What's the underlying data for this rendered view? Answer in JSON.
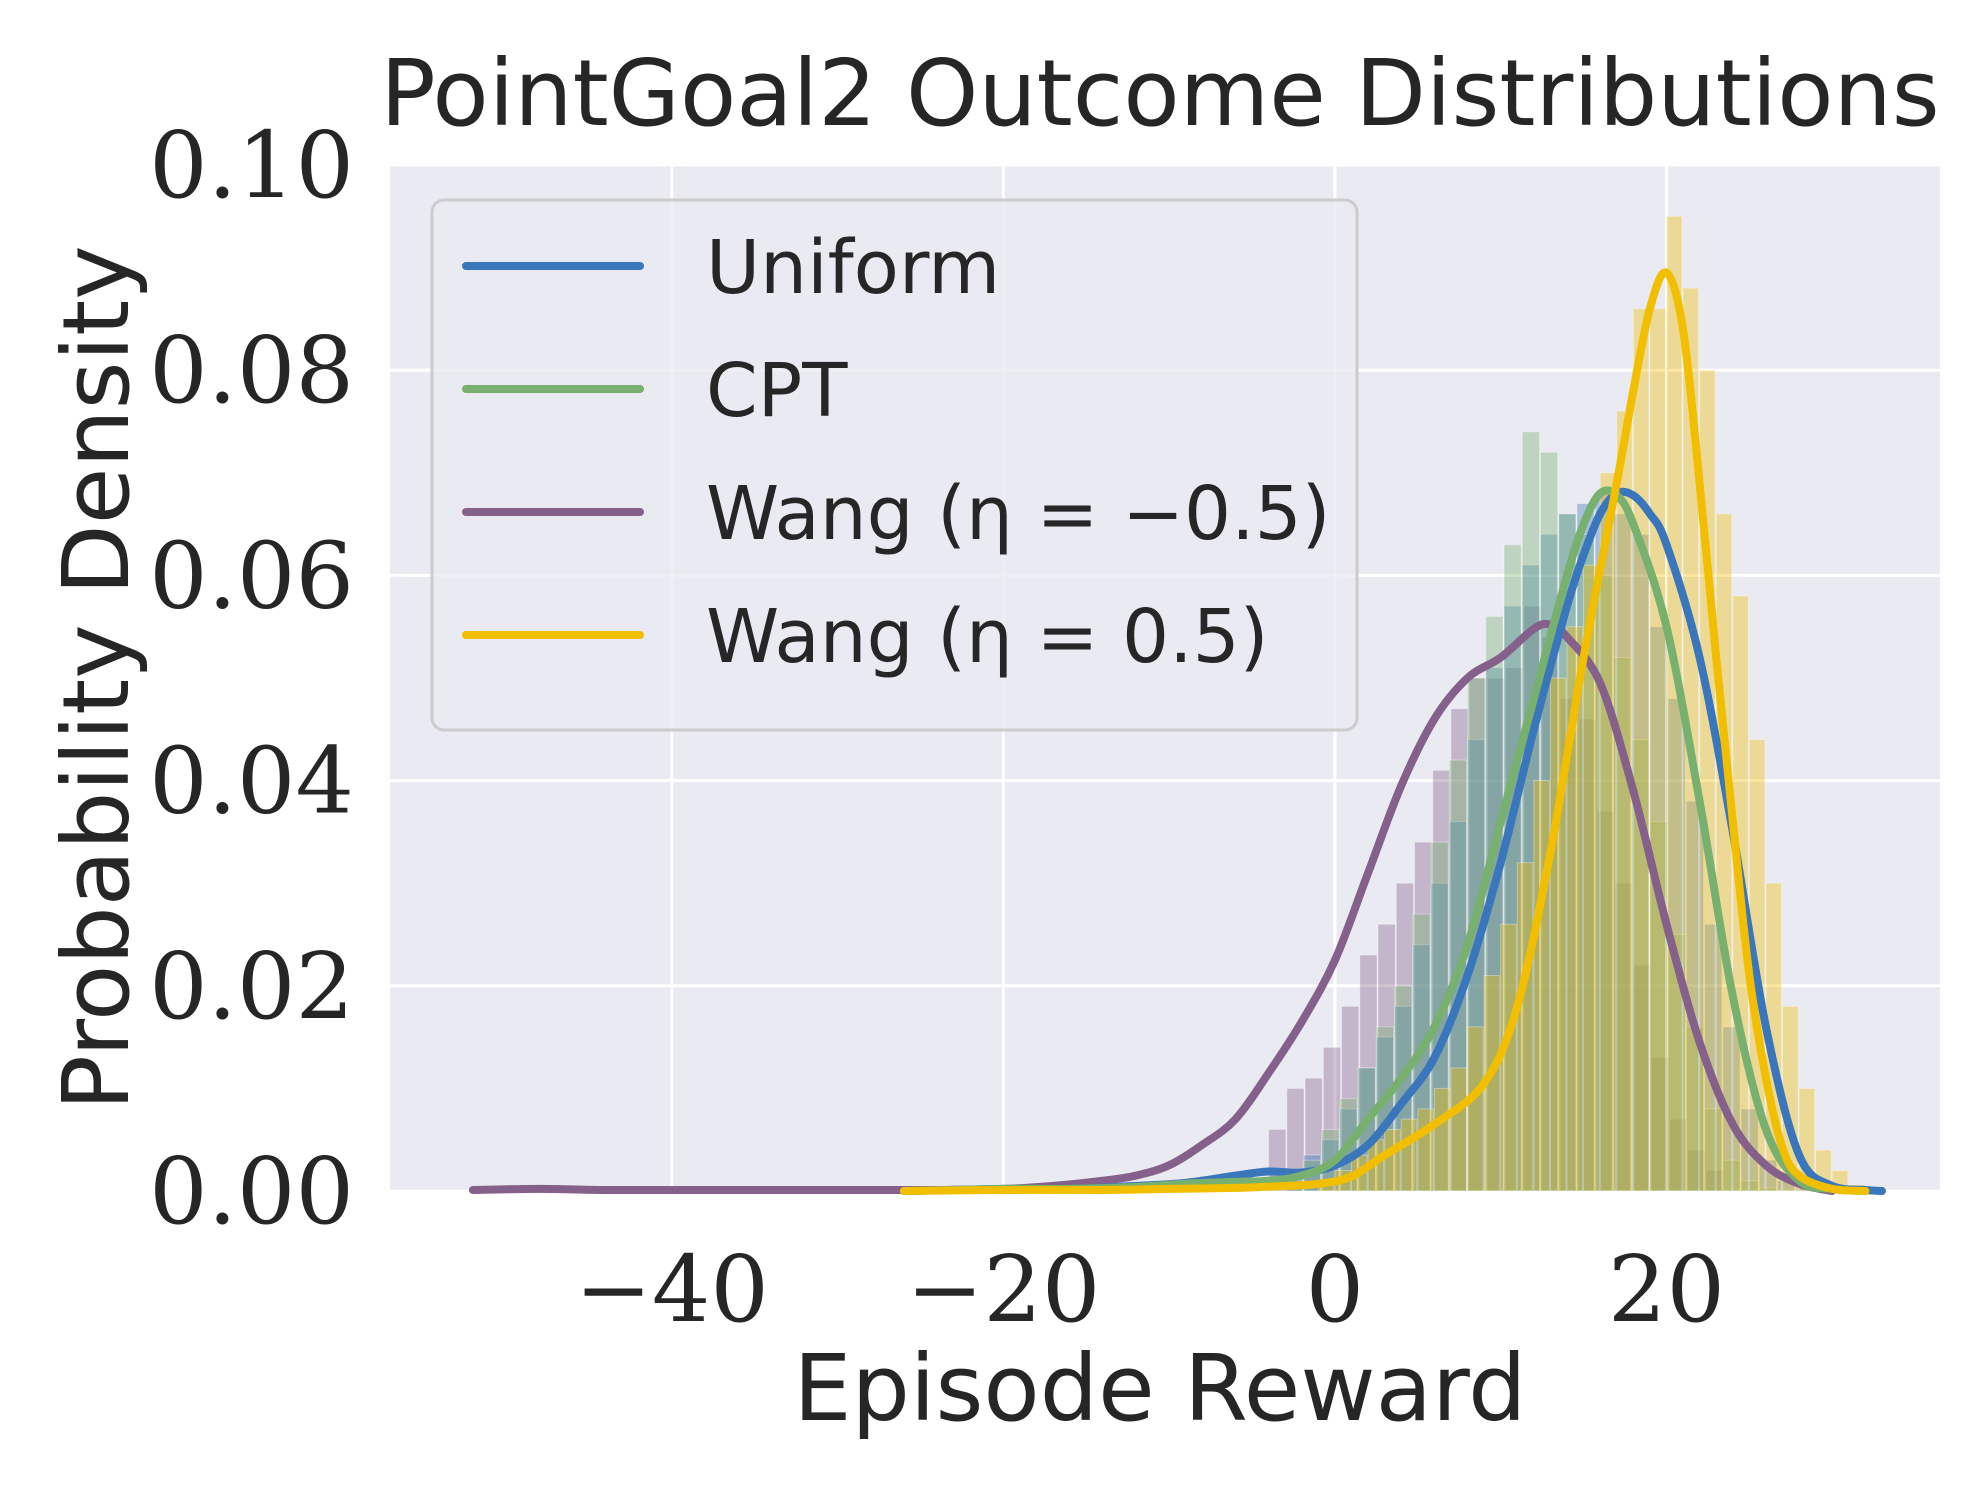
{
  "chart_data": {
    "type": "line",
    "title": "PointGoal2 Outcome Distributions",
    "xlabel": "Episode Reward",
    "ylabel": "Probability Density",
    "xlim": [
      -57,
      36.5
    ],
    "ylim": [
      0,
      0.1
    ],
    "xticks": [
      -40,
      -20,
      0,
      20
    ],
    "xtick_labels": [
      "−40",
      "−20",
      "0",
      "20"
    ],
    "yticks": [
      0,
      0.02,
      0.04,
      0.06,
      0.08,
      0.1
    ],
    "ytick_labels": [
      "0.00",
      "0.02",
      "0.04",
      "0.06",
      "0.08",
      "0.10"
    ],
    "grid": true,
    "legend_position": "top-left",
    "background": "#EAEAF2",
    "series": [
      {
        "name": "Uniform",
        "color": "#3A76BC",
        "x": [
          -26,
          -20,
          -16,
          -12,
          -9,
          -6,
          -4,
          -2,
          0,
          2,
          4,
          6,
          8,
          10,
          12,
          14,
          15,
          16,
          17,
          18,
          19,
          20,
          22,
          24,
          26,
          28,
          30,
          32,
          33
        ],
        "y": [
          0,
          0.0002,
          0.0002,
          0.0005,
          0.0008,
          0.0015,
          0.0019,
          0.0018,
          0.0025,
          0.0045,
          0.0085,
          0.013,
          0.021,
          0.032,
          0.045,
          0.057,
          0.062,
          0.066,
          0.068,
          0.0678,
          0.066,
          0.063,
          0.052,
          0.035,
          0.016,
          0.0035,
          0.0005,
          0.0001,
          0
        ]
      },
      {
        "name": "CPT",
        "color": "#77B06F",
        "x": [
          -26,
          -20,
          -16,
          -12,
          -9,
          -6,
          -4,
          -2,
          0,
          2,
          4,
          6,
          8,
          10,
          12,
          14,
          15,
          16,
          17,
          18,
          20,
          22,
          24,
          26,
          28,
          30,
          32
        ],
        "y": [
          0,
          0.0002,
          0.0002,
          0.0004,
          0.0007,
          0.0009,
          0.001,
          0.0015,
          0.003,
          0.007,
          0.011,
          0.016,
          0.024,
          0.036,
          0.048,
          0.06,
          0.065,
          0.068,
          0.0678,
          0.065,
          0.055,
          0.038,
          0.019,
          0.006,
          0.001,
          0.0002,
          0
        ]
      },
      {
        "name": "Wang (η = −0.5)",
        "color": "#84608A",
        "x": [
          -52,
          -48,
          -44,
          -40,
          -36,
          -30,
          -24,
          -20,
          -17,
          -14,
          -12,
          -10,
          -8,
          -6,
          -4,
          -2,
          0,
          2,
          4,
          6,
          8,
          10,
          12,
          13,
          14,
          16,
          18,
          20,
          22,
          24,
          26,
          28,
          30
        ],
        "y": [
          0.0001,
          0.0002,
          0.0001,
          0.0001,
          0.0001,
          0.0001,
          0.0001,
          0.0002,
          0.0005,
          0.001,
          0.0015,
          0.0025,
          0.0045,
          0.007,
          0.0115,
          0.0165,
          0.0225,
          0.031,
          0.0395,
          0.046,
          0.05,
          0.052,
          0.0548,
          0.0552,
          0.054,
          0.0495,
          0.039,
          0.026,
          0.0145,
          0.0065,
          0.0025,
          0.0007,
          0
        ]
      },
      {
        "name": "Wang (η = 0.5)",
        "color": "#F2BE00",
        "x": [
          -26,
          -20,
          -14,
          -10,
          -6,
          -3,
          -1,
          1,
          3,
          6,
          9,
          11,
          13,
          15,
          17,
          18,
          19,
          20,
          21,
          22,
          23,
          24,
          25,
          26,
          27,
          28,
          30,
          32
        ],
        "y": [
          0,
          0.0001,
          0.0001,
          0.0002,
          0.0003,
          0.0005,
          0.0007,
          0.0014,
          0.0035,
          0.0065,
          0.0105,
          0.018,
          0.033,
          0.052,
          0.069,
          0.078,
          0.086,
          0.0895,
          0.084,
          0.069,
          0.052,
          0.036,
          0.021,
          0.011,
          0.0042,
          0.0015,
          0.0002,
          0
        ]
      }
    ],
    "histograms": [
      {
        "series": "Wang (η = −0.5)",
        "color": "#84608A",
        "start": -4,
        "width": 1.1,
        "heights": [
          0.006,
          0.01,
          0.011,
          0.014,
          0.018,
          0.023,
          0.026,
          0.03,
          0.034,
          0.041,
          0.047,
          0.05,
          0.05,
          0.051,
          0.057,
          0.054,
          0.048,
          0.046,
          0.037,
          0.03,
          0.022,
          0.013,
          0.007,
          0.004,
          0.002
        ]
      },
      {
        "series": "Uniform",
        "color": "#3A76BC",
        "start": -3,
        "width": 1.1,
        "heights": [
          0.002,
          0.0035,
          0.005,
          0.008,
          0.012,
          0.015,
          0.018,
          0.024,
          0.03,
          0.036,
          0.044,
          0.051,
          0.057,
          0.061,
          0.064,
          0.066,
          0.067,
          0.068,
          0.066,
          0.064,
          0.055,
          0.048,
          0.038,
          0.026,
          0.016,
          0.008,
          0.003,
          0.001,
          0.0003,
          0.0001
        ]
      },
      {
        "series": "CPT",
        "color": "#77B06F",
        "start": -3,
        "width": 1.1,
        "heights": [
          0.001,
          0.003,
          0.006,
          0.009,
          0.012,
          0.016,
          0.02,
          0.027,
          0.034,
          0.042,
          0.05,
          0.056,
          0.063,
          0.074,
          0.072,
          0.066,
          0.064,
          0.06,
          0.052,
          0.044,
          0.036,
          0.025,
          0.016,
          0.008,
          0.003,
          0.001,
          0.0003
        ]
      },
      {
        "series": "Wang (η = 0.5)",
        "color": "#F2BE00",
        "start": -1,
        "width": 1.0,
        "heights": [
          0.001,
          0.002,
          0.0035,
          0.005,
          0.006,
          0.007,
          0.008,
          0.01,
          0.012,
          0.016,
          0.021,
          0.026,
          0.032,
          0.04,
          0.05,
          0.055,
          0.061,
          0.07,
          0.076,
          0.086,
          0.086,
          0.095,
          0.088,
          0.08,
          0.066,
          0.058,
          0.044,
          0.03,
          0.018,
          0.01,
          0.004,
          0.002,
          0.0006
        ]
      }
    ]
  }
}
